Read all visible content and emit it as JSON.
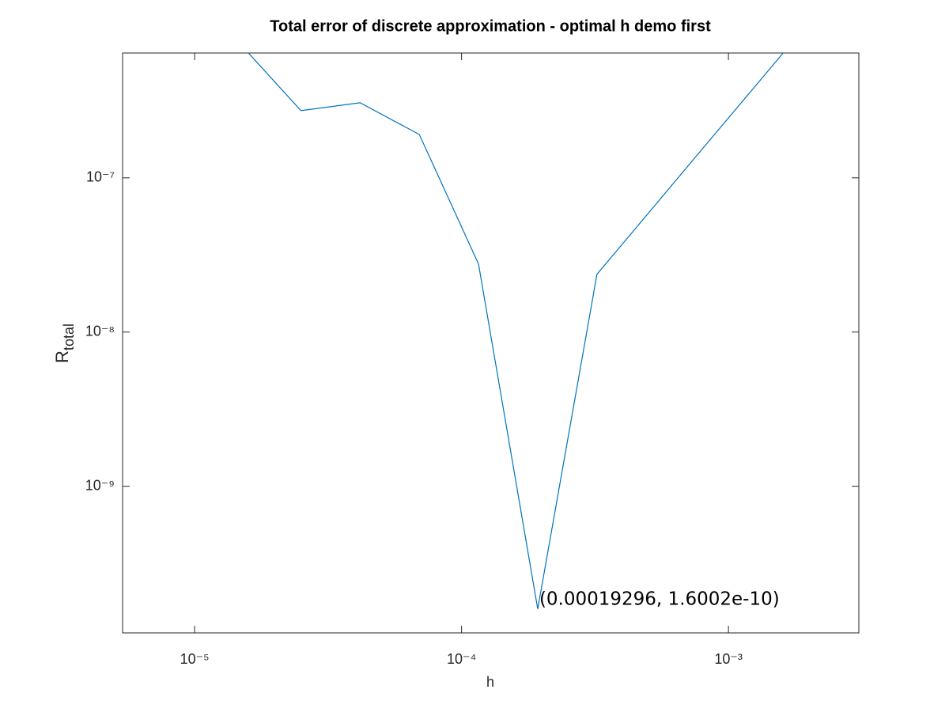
{
  "chart_data": {
    "type": "line",
    "title": "Total error of discrete approximation - optimal h demo first",
    "xlabel": "h",
    "ylabel": {
      "text": "R",
      "subscript": "total"
    },
    "x": [
      1.501e-05,
      2.501e-05,
      4.168e-05,
      6.947e-05,
      0.00011578,
      0.00019296,
      0.0003216,
      0.000536,
      0.000893,
      0.001489,
      0.00248
    ],
    "series": [
      {
        "color": "#0072bd",
        "values": [
          7.2e-07,
          2.73e-07,
          3.07e-07,
          1.91e-07,
          2.76e-08,
          1.6002e-10,
          2.37e-08,
          6.78e-08,
          1.94e-07,
          5.54e-07,
          1.58e-06
        ]
      }
    ],
    "annotation": "(0.00019296, 1.6002e-10)",
    "xscale": "log",
    "yscale": "log",
    "xlim": [
      5.37e-06,
      0.00308
    ],
    "ylim": [
      1.12e-10,
      6.45e-07
    ],
    "xticks": [
      {
        "value": 1e-05,
        "label": "10⁻⁵"
      },
      {
        "value": 0.0001,
        "label": "10⁻⁴"
      },
      {
        "value": 0.001,
        "label": "10⁻³"
      }
    ],
    "yticks": [
      {
        "value": 1e-09,
        "label": "10⁻⁹"
      },
      {
        "value": 1e-08,
        "label": "10⁻⁸"
      },
      {
        "value": 1e-07,
        "label": "10⁻⁷"
      }
    ],
    "grid": false
  }
}
